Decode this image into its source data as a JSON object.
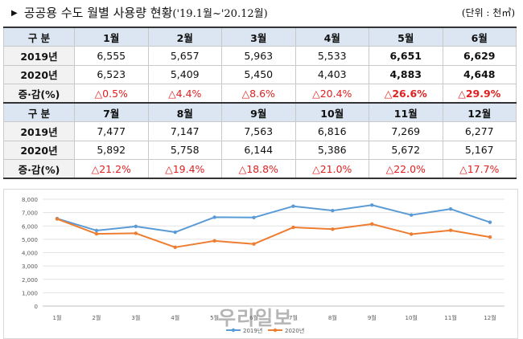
{
  "header": {
    "title": "공공용 수도 월별 사용량 현황",
    "period": "('19.1월~'20.12월)",
    "unit": "(단위 : 천㎥)"
  },
  "table": {
    "row_labels": [
      "구 분",
      "2019년",
      "2020년",
      "증·감(%)"
    ],
    "blocks": [
      {
        "months": [
          "1월",
          "2월",
          "3월",
          "4월",
          "5월",
          "6월"
        ],
        "y2019": [
          "6,555",
          "5,657",
          "5,963",
          "5,533",
          "6,651",
          "6,629"
        ],
        "y2020": [
          "6,523",
          "5,409",
          "5,450",
          "4,403",
          "4,883",
          "4,648"
        ],
        "change": [
          "△0.5%",
          "△4.4%",
          "△8.6%",
          "△20.4%",
          "△26.6%",
          "△29.9%"
        ]
      },
      {
        "months": [
          "7월",
          "8월",
          "9월",
          "10월",
          "11월",
          "12월"
        ],
        "y2019": [
          "7,477",
          "7,147",
          "7,563",
          "6,816",
          "7,269",
          "6,277"
        ],
        "y2020": [
          "5,892",
          "5,758",
          "6,144",
          "5,386",
          "5,672",
          "5,167"
        ],
        "change": [
          "△21.2%",
          "△19.4%",
          "△18.8%",
          "△21.0%",
          "△22.0%",
          "△17.7%"
        ]
      }
    ]
  },
  "chart_data": {
    "type": "line",
    "categories": [
      "1월",
      "2월",
      "3월",
      "4월",
      "5월",
      "6월",
      "7월",
      "8월",
      "9월",
      "10월",
      "11월",
      "12월"
    ],
    "series": [
      {
        "name": "2019년",
        "color": "#5b9bd5",
        "values": [
          6555,
          5657,
          5963,
          5533,
          6651,
          6629,
          7477,
          7147,
          7563,
          6816,
          7269,
          6277
        ]
      },
      {
        "name": "2020년",
        "color": "#ed7d31",
        "values": [
          6523,
          5409,
          5450,
          4403,
          4883,
          4648,
          5892,
          5758,
          6144,
          5386,
          5672,
          5167
        ]
      }
    ],
    "ylim": [
      0,
      8000
    ],
    "yticks": [
      "0",
      "1,000",
      "2,000",
      "3,000",
      "4,000",
      "5,000",
      "6,000",
      "7,000",
      "8,000"
    ],
    "grid": true,
    "legend": "bottom"
  },
  "watermark": "우리일보"
}
